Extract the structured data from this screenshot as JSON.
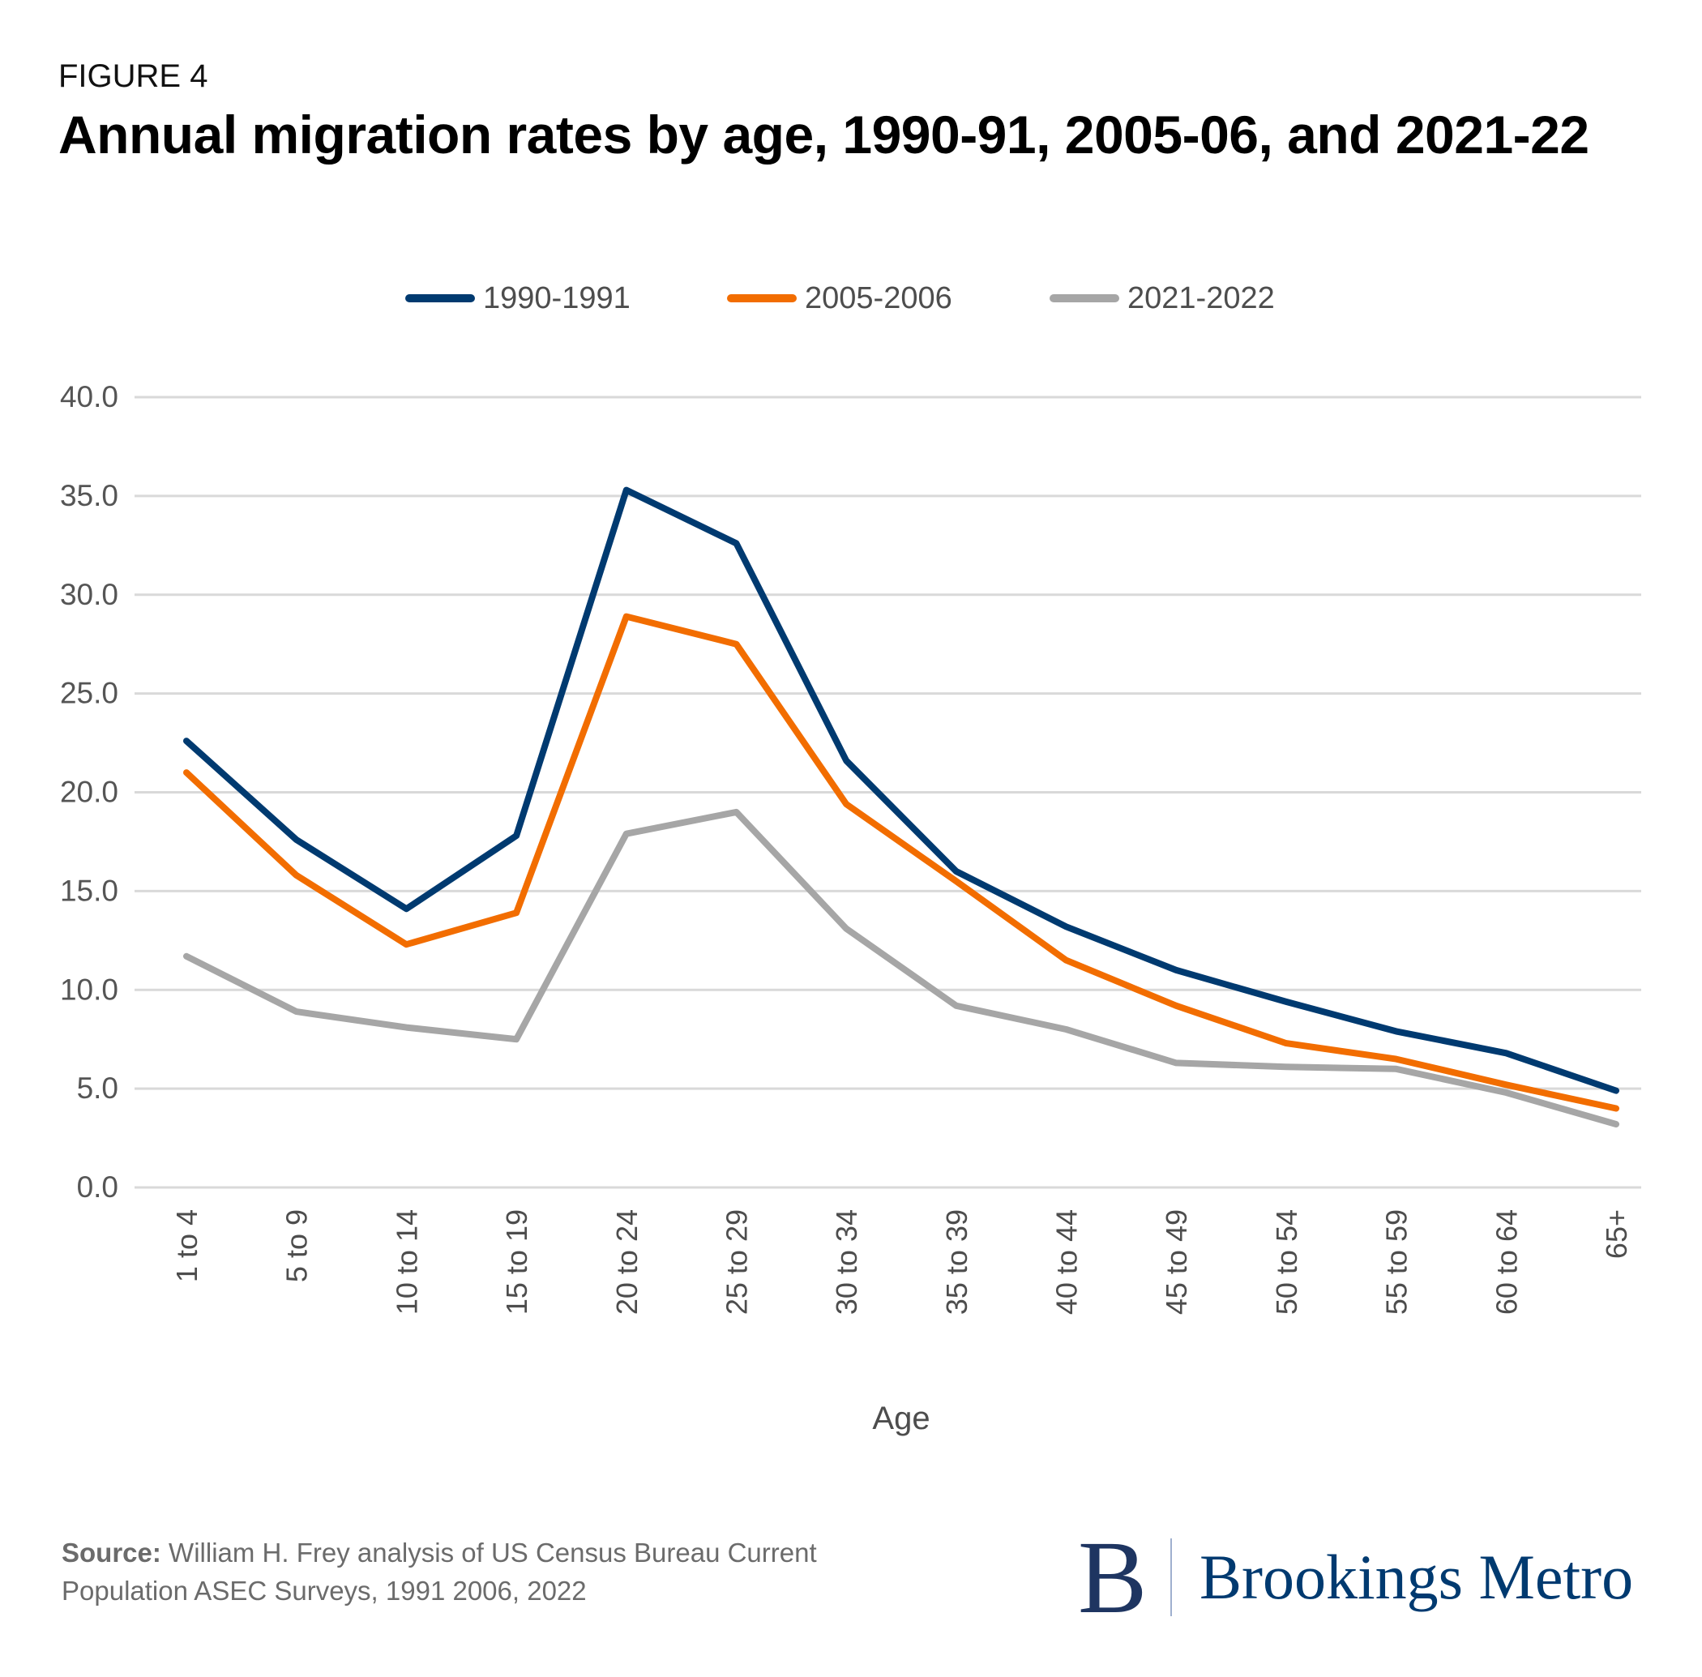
{
  "header": {
    "figure_label": "FIGURE 4",
    "title": "Annual migration rates by age, 1990-91, 2005-06, and 2021-22"
  },
  "legend": [
    {
      "label": "1990-1991",
      "color": "#003a70"
    },
    {
      "label": "2005-2006",
      "color": "#f26d00"
    },
    {
      "label": "2021-2022",
      "color": "#a6a6a6"
    }
  ],
  "footer": {
    "source_label": "Source:",
    "source_text": "William H. Frey analysis of US Census Bureau Current Population ASEC Surveys, 1991  2006, 2022",
    "logo_letter": "B",
    "logo_text": "Brookings Metro"
  },
  "chart_data": {
    "type": "line",
    "title": "Annual migration rates by age, 1990-91, 2005-06, and 2021-22",
    "xlabel": "Age",
    "ylabel": "",
    "categories": [
      "1 to 4",
      "5 to 9",
      "10 to 14",
      "15 to 19",
      "20 to 24",
      "25 to 29",
      "30 to 34",
      "35 to 39",
      "40 to 44",
      "45 to 49",
      "50 to 54",
      "55 to 59",
      "60 to 64",
      "65+"
    ],
    "ylim": [
      0,
      40
    ],
    "yticks": [
      0,
      5,
      10,
      15,
      20,
      25,
      30,
      35,
      40
    ],
    "ytick_labels": [
      "0.0",
      "5.0",
      "10.0",
      "15.0",
      "20.0",
      "25.0",
      "30.0",
      "35.0",
      "40.0"
    ],
    "grid": true,
    "legend_position": "top",
    "series": [
      {
        "name": "1990-1991",
        "color": "#003a70",
        "values": [
          22.6,
          17.6,
          14.1,
          17.8,
          35.3,
          32.6,
          21.6,
          16.0,
          13.2,
          11.0,
          9.4,
          7.9,
          6.8,
          4.9
        ]
      },
      {
        "name": "2005-2006",
        "color": "#f26d00",
        "values": [
          21.0,
          15.8,
          12.3,
          13.9,
          28.9,
          27.5,
          19.4,
          15.5,
          11.5,
          9.2,
          7.3,
          6.5,
          5.2,
          4.0
        ]
      },
      {
        "name": "2021-2022",
        "color": "#a6a6a6",
        "values": [
          11.7,
          8.9,
          8.1,
          7.5,
          17.9,
          19.0,
          13.1,
          9.2,
          8.0,
          6.3,
          6.1,
          6.0,
          4.8,
          3.2
        ]
      }
    ]
  }
}
